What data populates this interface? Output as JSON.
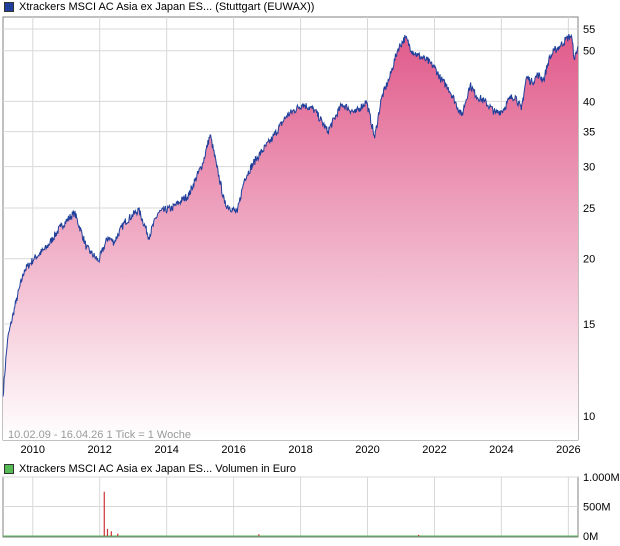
{
  "main_legend": {
    "text": "Xtrackers MSCI AC Asia ex Japan ES... (Stuttgart (EUWAX))",
    "color": "#1f3f9a"
  },
  "volume_legend": {
    "text": "Xtrackers MSCI AC Asia ex Japan ES... Volumen in Euro",
    "color": "#55bb55"
  },
  "info_text": "10.02.09 - 16.04.26   1 Tick = 1 Woche",
  "chart_data": [
    {
      "type": "area",
      "scale": "log",
      "x_ticks": [
        "2010",
        "2012",
        "2014",
        "2016",
        "2018",
        "2020",
        "2022",
        "2024",
        "2026"
      ],
      "y_ticks": [
        10,
        15,
        20,
        25,
        30,
        35,
        40,
        50,
        55
      ],
      "ylim": [
        9,
        58
      ],
      "grid": true,
      "line_color": "#1f3f9a",
      "fill_top_color": "#e05a8a",
      "fill_bottom_color": "#ffffff",
      "series": [
        {
          "x": [
            "2009-02-10",
            "2009-04-01",
            "2009-07-01",
            "2009-10-01",
            "2010-01-15",
            "2010-06-01",
            "2010-11-01",
            "2011-04-01",
            "2011-08-10",
            "2011-10-01",
            "2011-12-20",
            "2012-04-01",
            "2012-06-05",
            "2012-10-01",
            "2013-03-01",
            "2013-06-20",
            "2013-10-01",
            "2014-03-01",
            "2014-09-01",
            "2015-02-01",
            "2015-04-20",
            "2015-07-01",
            "2015-09-25",
            "2016-02-10",
            "2016-05-01",
            "2016-09-01",
            "2017-03-01",
            "2017-08-01",
            "2018-01-25",
            "2018-06-01",
            "2018-10-25",
            "2019-04-01",
            "2019-08-20",
            "2019-12-20",
            "2020-03-20",
            "2020-06-01",
            "2020-09-01",
            "2020-12-01",
            "2021-02-17",
            "2021-05-01",
            "2021-07-01",
            "2021-10-01",
            "2022-01-01",
            "2022-03-15",
            "2022-06-01",
            "2022-10-25",
            "2023-01-25",
            "2023-04-01",
            "2023-07-01",
            "2023-10-30",
            "2024-01-20",
            "2024-04-01",
            "2024-06-01",
            "2024-08-05",
            "2024-10-01",
            "2024-12-01",
            "2025-02-01",
            "2025-04-08",
            "2025-06-01",
            "2025-08-01",
            "2025-10-01",
            "2025-12-01",
            "2026-02-01",
            "2026-03-10",
            "2026-04-16"
          ],
          "y": [
            10.9,
            14.0,
            16.5,
            19.0,
            20.0,
            21.0,
            23.0,
            24.5,
            21.0,
            20.5,
            19.8,
            22.0,
            21.5,
            23.5,
            24.8,
            22.0,
            24.5,
            25.0,
            26.5,
            30.5,
            34.5,
            30.0,
            25.5,
            24.5,
            28.5,
            31.0,
            34.0,
            37.5,
            39.5,
            38.5,
            35.0,
            39.5,
            38.0,
            40.0,
            34.0,
            40.5,
            44.5,
            50.5,
            53.0,
            50.0,
            49.0,
            48.0,
            46.5,
            44.0,
            42.5,
            37.5,
            43.0,
            41.0,
            40.0,
            38.0,
            38.5,
            40.5,
            41.0,
            38.5,
            44.5,
            43.5,
            45.0,
            44.0,
            48.0,
            50.0,
            51.0,
            52.5,
            53.5,
            48.0,
            51.0
          ]
        }
      ]
    },
    {
      "type": "bar",
      "title": "Volumen in Euro",
      "y_ticks": [
        "1.000M",
        "500M",
        "0M"
      ],
      "ylim": [
        0,
        1000
      ],
      "bar_color": "#cc3333",
      "x": [
        "2012-02-20",
        "2012-03-26",
        "2012-05-07",
        "2012-07-16",
        "2016-10-03",
        "2021-07-12"
      ],
      "values": [
        750,
        120,
        80,
        40,
        30,
        20
      ]
    }
  ]
}
